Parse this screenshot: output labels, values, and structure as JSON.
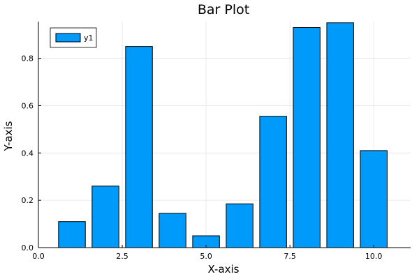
{
  "chart_data": {
    "type": "bar",
    "title": "Bar Plot",
    "xlabel": "X-axis",
    "ylabel": "Y-axis",
    "x": [
      1,
      2,
      3,
      4,
      5,
      6,
      7,
      8,
      9,
      10
    ],
    "series": [
      {
        "name": "y1",
        "color": "#009AFA",
        "values": [
          0.11,
          0.26,
          0.85,
          0.145,
          0.05,
          0.185,
          0.555,
          0.93,
          0.95,
          0.41
        ]
      }
    ],
    "xlim": [
      0,
      11.1
    ],
    "ylim": [
      0,
      0.955
    ],
    "xticks": [
      {
        "value": 0,
        "label": "0.0"
      },
      {
        "value": 2.5,
        "label": "2.5"
      },
      {
        "value": 5,
        "label": "5.0"
      },
      {
        "value": 7.5,
        "label": "7.5"
      },
      {
        "value": 10,
        "label": "10.0"
      }
    ],
    "yticks": [
      {
        "value": 0,
        "label": "0.0"
      },
      {
        "value": 0.2,
        "label": "0.2"
      },
      {
        "value": 0.4,
        "label": "0.4"
      },
      {
        "value": 0.6,
        "label": "0.6"
      },
      {
        "value": 0.8,
        "label": "0.8"
      }
    ],
    "grid": true,
    "legend": "top-left",
    "bar_width": 0.8
  }
}
